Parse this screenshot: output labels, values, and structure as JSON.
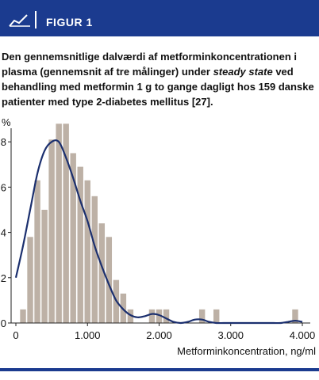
{
  "header": {
    "figure_label": "FIGUR 1",
    "icon": "chart-icon"
  },
  "caption": {
    "part1": "Den gennemsnitlige dalværdi af metforminkoncentrationen i plasma (gennemsnit af tre målinger) under ",
    "italic": "steady state",
    "part2": " ved behandling med metformin 1 g to gange dagligt hos 159 danske patienter med type 2-diabetes mellitus [27]."
  },
  "colors": {
    "brand": "#1b3b8f",
    "bars": "#bdb1a6",
    "curve": "#1b2f6e"
  },
  "chart_data": {
    "type": "bar",
    "title": "",
    "xlabel": "Metforminkoncentration, ng/ml",
    "ylabel": "%",
    "xlim": [
      0,
      4000
    ],
    "ylim": [
      0,
      8.6
    ],
    "bin_width": 100,
    "x_ticks": [
      0,
      1000,
      2000,
      3000,
      4000
    ],
    "x_tick_labels": [
      "0",
      "1.000",
      "2.000",
      "3.000",
      "4.000"
    ],
    "y_ticks": [
      0,
      2,
      4,
      6,
      8
    ],
    "y_tick_labels": [
      "0",
      "2",
      "4",
      "6",
      "8"
    ],
    "bars": [
      {
        "x": 100,
        "y": 0.6
      },
      {
        "x": 200,
        "y": 3.8
      },
      {
        "x": 300,
        "y": 6.3
      },
      {
        "x": 400,
        "y": 5.0
      },
      {
        "x": 500,
        "y": 8.1
      },
      {
        "x": 600,
        "y": 8.8
      },
      {
        "x": 700,
        "y": 8.8
      },
      {
        "x": 800,
        "y": 7.5
      },
      {
        "x": 900,
        "y": 6.9
      },
      {
        "x": 1000,
        "y": 6.3
      },
      {
        "x": 1100,
        "y": 5.6
      },
      {
        "x": 1200,
        "y": 4.4
      },
      {
        "x": 1300,
        "y": 3.8
      },
      {
        "x": 1400,
        "y": 1.9
      },
      {
        "x": 1500,
        "y": 1.3
      },
      {
        "x": 1600,
        "y": 0.6
      },
      {
        "x": 1900,
        "y": 0.6
      },
      {
        "x": 2000,
        "y": 0.6
      },
      {
        "x": 2100,
        "y": 0.6
      },
      {
        "x": 2600,
        "y": 0.6
      },
      {
        "x": 2800,
        "y": 0.6
      },
      {
        "x": 3900,
        "y": 0.6
      }
    ],
    "curve": {
      "x": [
        0,
        100,
        200,
        300,
        400,
        500,
        600,
        700,
        800,
        900,
        1000,
        1100,
        1200,
        1300,
        1400,
        1500,
        1600,
        1700,
        1800,
        1900,
        2000,
        2100,
        2200,
        2300,
        2400,
        2500,
        2600,
        2700,
        2800,
        2900,
        3000,
        3100,
        3200,
        3300,
        3400,
        3500,
        3600,
        3700,
        3800,
        3900,
        4000
      ],
      "y": [
        2.0,
        3.4,
        5.0,
        6.6,
        7.6,
        8.0,
        8.0,
        7.3,
        6.4,
        5.4,
        4.5,
        3.4,
        2.5,
        1.7,
        1.0,
        0.6,
        0.35,
        0.25,
        0.3,
        0.4,
        0.35,
        0.2,
        0.05,
        0.0,
        0.05,
        0.15,
        0.15,
        0.05,
        0.0,
        0.0,
        0.0,
        0.0,
        0.0,
        0.0,
        0.0,
        0.0,
        0.0,
        0.0,
        0.05,
        0.1,
        0.05
      ]
    }
  }
}
